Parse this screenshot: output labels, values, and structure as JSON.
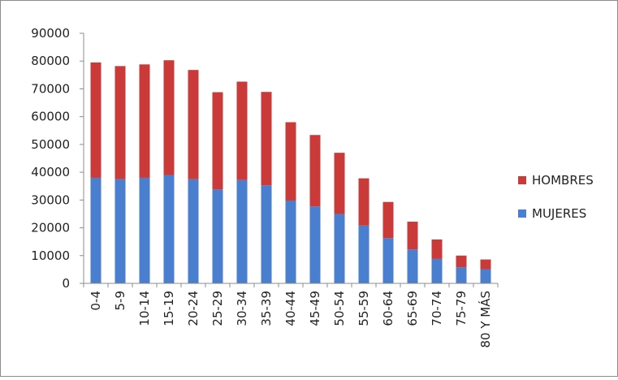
{
  "chart_data": {
    "type": "bar",
    "stacked": true,
    "categories": [
      "0-4",
      "5-9",
      "10-14",
      "15-19",
      "20-24",
      "25-29",
      "30-34",
      "35-39",
      "40-44",
      "45-49",
      "50-54",
      "55-59",
      "60-64",
      "65-69",
      "70-74",
      "75-79",
      "80 Y MÁS"
    ],
    "series": [
      {
        "name": "MUJERES",
        "color": "#4a7fcf",
        "values": [
          38000,
          37500,
          38000,
          39000,
          37500,
          33800,
          37200,
          35300,
          29800,
          27700,
          25000,
          20800,
          16300,
          12200,
          8800,
          5800,
          5100
        ]
      },
      {
        "name": "HOMBRES",
        "color": "#c93a38",
        "values": [
          41500,
          40700,
          40800,
          41300,
          39300,
          35000,
          35400,
          33600,
          28200,
          25700,
          22000,
          17000,
          13000,
          10000,
          7000,
          4200,
          3500
        ]
      }
    ],
    "ylim": [
      0,
      90000
    ],
    "yticks": [
      0,
      10000,
      20000,
      30000,
      40000,
      50000,
      60000,
      70000,
      80000,
      90000
    ],
    "grid": false,
    "legend": {
      "position": "right",
      "entries": [
        {
          "label": "HOMBRES",
          "color": "#c93a38"
        },
        {
          "label": "MUJERES",
          "color": "#4a7fcf"
        }
      ]
    },
    "title": "",
    "xlabel": "",
    "ylabel": ""
  }
}
